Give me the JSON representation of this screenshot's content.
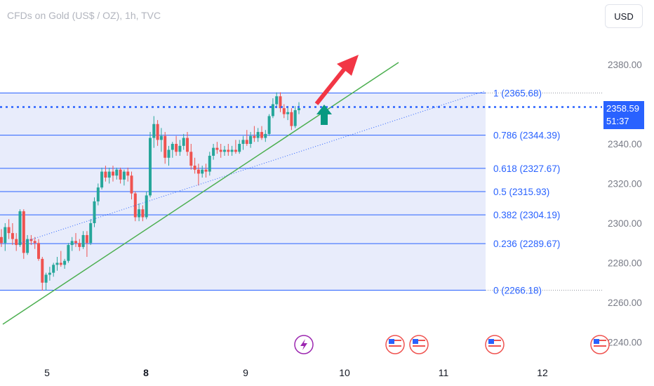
{
  "header": {
    "symbol": "CFDs on Gold (US$ / OZ), 1h, TVC",
    "currency": "USD"
  },
  "last_price": {
    "value": "2358.59",
    "countdown": "51:37"
  },
  "colors": {
    "up": "#26a69a",
    "down": "#ef5350",
    "fib_line": "#2962ff",
    "fib_fill": "#e8ecfb",
    "trendline": "#4caf50",
    "accent": "#2962ff",
    "arrow_red": "#f23645",
    "arrow_green": "#089981"
  },
  "chart_data": {
    "type": "candlestick",
    "y_ticks": [
      2240,
      2260,
      2280,
      2300,
      2320,
      2340,
      2360,
      2380
    ],
    "y_tick_labels": [
      "2240.00",
      "2260.00",
      "2280.00",
      "2300.00",
      "2320.00",
      "2340.00",
      "2360.00",
      "2380.00"
    ],
    "x_tick_labels": [
      "5",
      "8",
      "9",
      "10",
      "11",
      "12"
    ],
    "fib_levels": [
      {
        "ratio": "0",
        "value": 2266.18
      },
      {
        "ratio": "0.236",
        "value": 2289.67
      },
      {
        "ratio": "0.382",
        "value": 2304.19
      },
      {
        "ratio": "0.5",
        "value": 2315.93
      },
      {
        "ratio": "0.618",
        "value": 2327.67
      },
      {
        "ratio": "0.786",
        "value": 2344.39
      },
      {
        "ratio": "1",
        "value": 2365.68
      }
    ],
    "last_price": 2358.59,
    "events": [
      "flash-icon",
      "us-flag-icon",
      "us-flag-icon",
      "us-flag-icon",
      "us-flag-icon"
    ],
    "candles": [
      [
        2293,
        2297,
        2288,
        2290
      ],
      [
        2290,
        2300,
        2286,
        2298
      ],
      [
        2298,
        2302,
        2292,
        2295
      ],
      [
        2295,
        2300,
        2289,
        2292
      ],
      [
        2292,
        2295,
        2286,
        2289
      ],
      [
        2289,
        2307,
        2288,
        2306
      ],
      [
        2306,
        2307,
        2282,
        2285
      ],
      [
        2285,
        2294,
        2284,
        2292
      ],
      [
        2292,
        2294,
        2289,
        2291
      ],
      [
        2291,
        2293,
        2287,
        2290
      ],
      [
        2290,
        2292,
        2281,
        2282
      ],
      [
        2282,
        2283,
        2266,
        2270
      ],
      [
        2270,
        2275,
        2266,
        2274
      ],
      [
        2274,
        2278,
        2271,
        2275
      ],
      [
        2275,
        2280,
        2273,
        2279
      ],
      [
        2279,
        2283,
        2276,
        2280
      ],
      [
        2280,
        2286,
        2278,
        2279
      ],
      [
        2279,
        2282,
        2277,
        2281
      ],
      [
        2281,
        2290,
        2280,
        2289
      ],
      [
        2289,
        2293,
        2286,
        2291
      ],
      [
        2291,
        2295,
        2288,
        2290
      ],
      [
        2290,
        2292,
        2286,
        2288
      ],
      [
        2288,
        2296,
        2287,
        2294
      ],
      [
        2294,
        2296,
        2283,
        2290
      ],
      [
        2290,
        2302,
        2289,
        2300
      ],
      [
        2300,
        2313,
        2298,
        2311
      ],
      [
        2311,
        2320,
        2309,
        2318
      ],
      [
        2318,
        2328,
        2317,
        2326
      ],
      [
        2326,
        2329,
        2321,
        2323
      ],
      [
        2323,
        2328,
        2320,
        2326
      ],
      [
        2326,
        2329,
        2321,
        2324
      ],
      [
        2324,
        2328,
        2322,
        2327
      ],
      [
        2327,
        2328,
        2320,
        2322
      ],
      [
        2322,
        2327,
        2319,
        2326
      ],
      [
        2326,
        2328,
        2321,
        2324
      ],
      [
        2324,
        2326,
        2312,
        2315
      ],
      [
        2315,
        2316,
        2301,
        2303
      ],
      [
        2303,
        2310,
        2301,
        2307
      ],
      [
        2307,
        2309,
        2301,
        2303
      ],
      [
        2303,
        2316,
        2302,
        2314
      ],
      [
        2314,
        2346,
        2313,
        2343
      ],
      [
        2343,
        2354,
        2338,
        2350
      ],
      [
        2350,
        2352,
        2339,
        2342
      ],
      [
        2342,
        2348,
        2336,
        2344
      ],
      [
        2344,
        2346,
        2330,
        2333
      ],
      [
        2333,
        2339,
        2329,
        2337
      ],
      [
        2337,
        2341,
        2333,
        2340
      ],
      [
        2340,
        2344,
        2334,
        2336
      ],
      [
        2336,
        2342,
        2334,
        2339
      ],
      [
        2339,
        2345,
        2337,
        2343
      ],
      [
        2343,
        2346,
        2334,
        2336
      ],
      [
        2336,
        2340,
        2327,
        2329
      ],
      [
        2329,
        2333,
        2325,
        2327
      ],
      [
        2327,
        2330,
        2319,
        2325
      ],
      [
        2325,
        2329,
        2323,
        2327
      ],
      [
        2327,
        2330,
        2323,
        2326
      ],
      [
        2326,
        2336,
        2324,
        2334
      ],
      [
        2334,
        2340,
        2332,
        2338
      ],
      [
        2338,
        2341,
        2335,
        2337
      ],
      [
        2337,
        2340,
        2333,
        2336
      ],
      [
        2336,
        2339,
        2334,
        2337
      ],
      [
        2337,
        2340,
        2334,
        2336
      ],
      [
        2336,
        2339,
        2334,
        2337
      ],
      [
        2337,
        2342,
        2335,
        2336
      ],
      [
        2336,
        2342,
        2335,
        2340
      ],
      [
        2340,
        2344,
        2337,
        2342
      ],
      [
        2342,
        2347,
        2339,
        2340
      ],
      [
        2340,
        2346,
        2338,
        2344
      ],
      [
        2344,
        2349,
        2341,
        2343
      ],
      [
        2343,
        2348,
        2341,
        2346
      ],
      [
        2346,
        2349,
        2342,
        2343
      ],
      [
        2343,
        2347,
        2341,
        2345
      ],
      [
        2345,
        2355,
        2344,
        2354
      ],
      [
        2354,
        2363,
        2353,
        2360
      ],
      [
        2360,
        2366,
        2358,
        2364
      ],
      [
        2364,
        2366,
        2356,
        2358
      ],
      [
        2358,
        2360,
        2353,
        2355
      ],
      [
        2355,
        2359,
        2352,
        2356
      ],
      [
        2356,
        2358,
        2347,
        2349
      ],
      [
        2349,
        2359,
        2348,
        2357
      ],
      [
        2357,
        2361,
        2355,
        2358
      ]
    ]
  }
}
